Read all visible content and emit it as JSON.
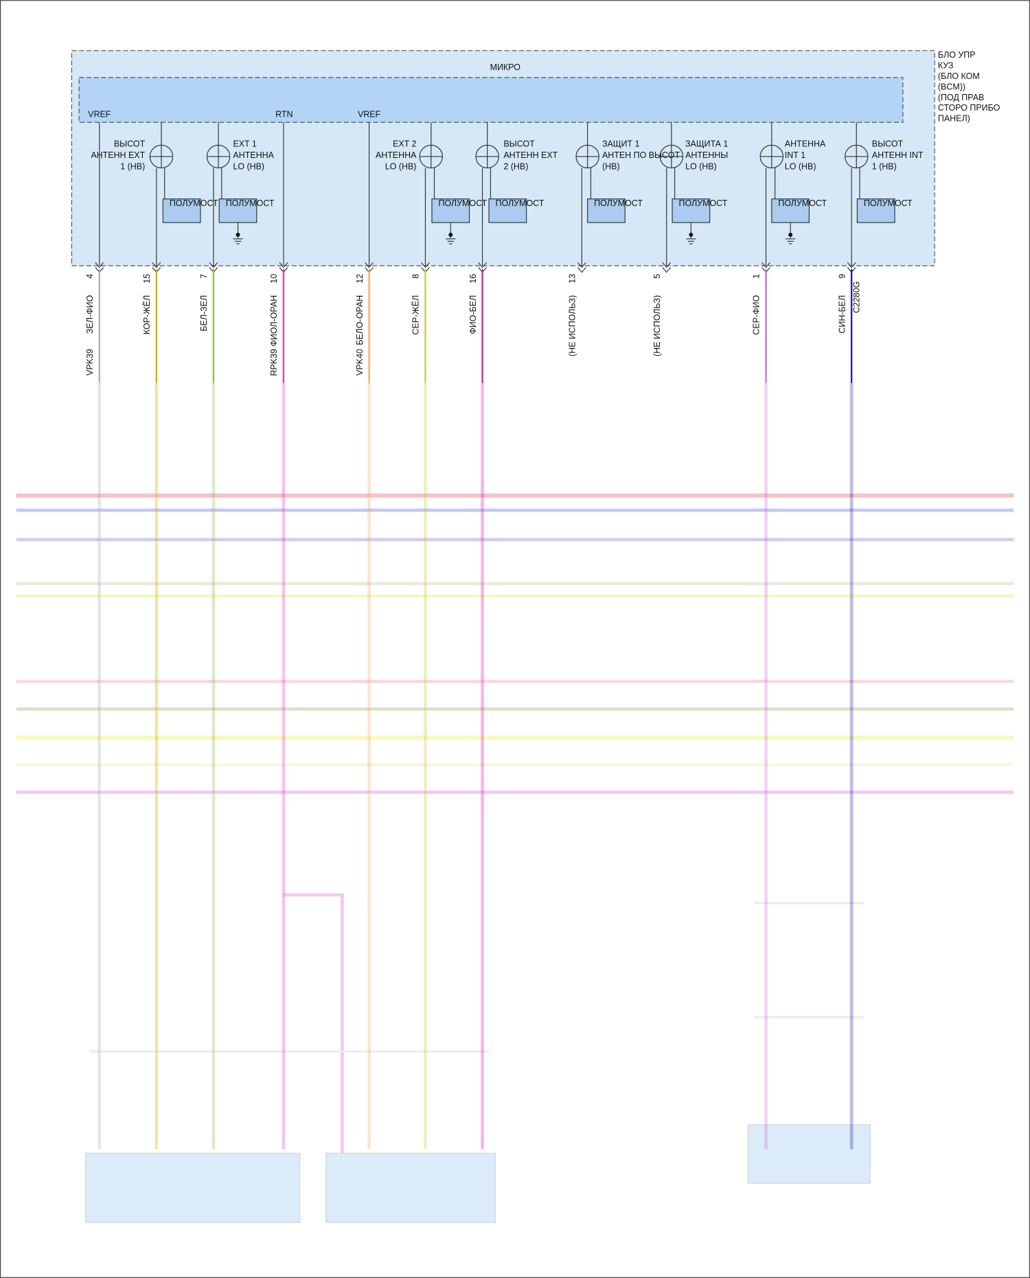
{
  "module": {
    "label_lines": [
      "БЛО УПР",
      "КУЗ",
      "(БЛО КОМ",
      "(BCM))",
      "(ПОД ПРАВ",
      "СТОРО ПРИБО",
      "ПАНЕЛ)"
    ],
    "micro": "МИКРО",
    "inner_labels": [
      "VREF",
      "RTN",
      "VREF"
    ],
    "connector": "C2280G"
  },
  "antennas": [
    {
      "lines": [
        "ВЫСОТ",
        "АНТЕНН EXT",
        "1 (НВ)"
      ],
      "box": "ПОЛУМОСТ"
    },
    {
      "lines": [
        "EXT 1",
        "АНТЕННА",
        "LO (НВ)"
      ],
      "box": "ПОЛУМОСТ"
    },
    {
      "lines": [
        "EXT 2",
        "АНТЕННА",
        "LO (НВ)"
      ],
      "box": "ПОЛУМОСТ"
    },
    {
      "lines": [
        "ВЫСОТ",
        "АНТЕНН EXT",
        "2 (НВ)"
      ],
      "box": "ПОЛУМОСТ"
    },
    {
      "lines": [
        "ЗАЩИТ 1",
        "АНТЕН ПО ВЫСОТ",
        "(НВ)"
      ],
      "box": "ПОЛУМОСТ"
    },
    {
      "lines": [
        "ЗАЩИТА 1",
        "АНТЕННЫ",
        "LO (НВ)"
      ],
      "box": "ПОЛУМОСТ"
    },
    {
      "lines": [
        "АНТЕННА",
        "INT 1",
        "LO (НВ)"
      ],
      "box": "ПОЛУМОСТ"
    },
    {
      "lines": [
        "ВЫСОТ",
        "АНТЕНН INT",
        "1 (НВ)"
      ],
      "box": "ПОЛУМОСТ"
    }
  ],
  "pins": [
    {
      "pin": "4",
      "wire": "ЗЕЛ-ФИО",
      "circuit": "VPK39"
    },
    {
      "pin": "15",
      "wire": "КОР-ЖЁЛ"
    },
    {
      "pin": "7",
      "wire": "БЕЛ-ЗЕЛ"
    },
    {
      "pin": "10",
      "wire": "ФИОЛ-ОРАН",
      "circuit": "RPK39"
    },
    {
      "pin": "12",
      "wire": "БЕЛО-ОРАН",
      "circuit": "VPK40"
    },
    {
      "pin": "8",
      "wire": "СЕР-ЖЁЛ"
    },
    {
      "pin": "16",
      "wire": "ФИО-БЕЛ"
    },
    {
      "pin": "13",
      "wire": "(НЕ ИСПОЛЬЗ)"
    },
    {
      "pin": "5",
      "wire": "(НЕ ИСПОЛЬЗ)"
    },
    {
      "pin": "1",
      "wire": "СЕР-ФИО"
    },
    {
      "pin": "9",
      "wire": "СИН-БЕЛ"
    }
  ]
}
